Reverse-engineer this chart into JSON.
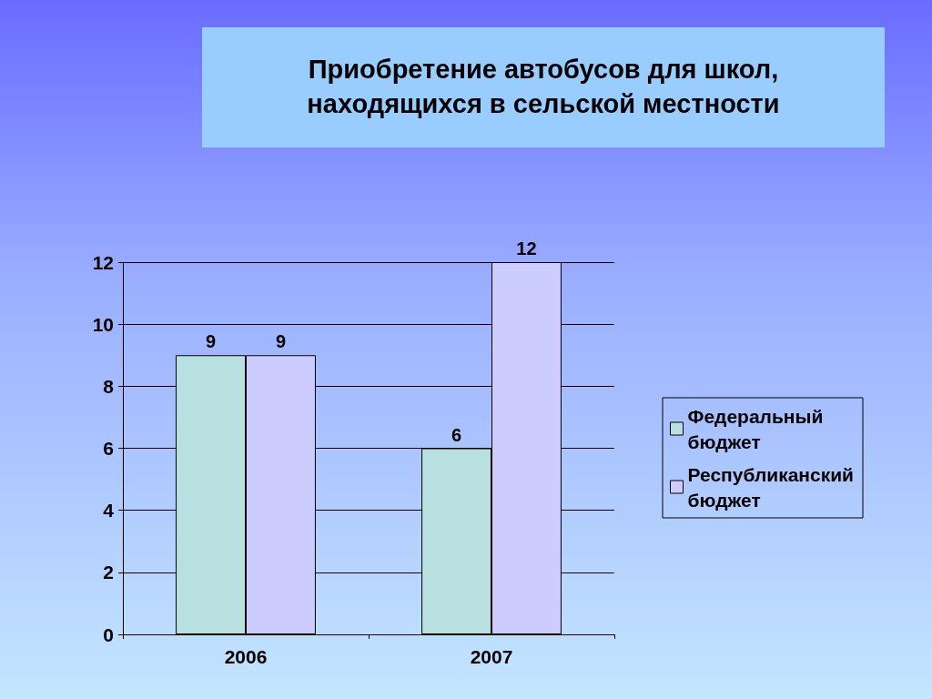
{
  "chart_data": {
    "type": "bar",
    "title": "Приобретение автобусов для школ, находящихся в сельской местности",
    "categories": [
      "2006",
      "2007"
    ],
    "series": [
      {
        "name": "Федеральный бюджет",
        "color": "#b8e0e0",
        "values": [
          9,
          6
        ]
      },
      {
        "name": "Республиканский бюджет",
        "color": "#ccccff",
        "values": [
          9,
          12
        ]
      }
    ],
    "ylim": [
      0,
      12
    ],
    "yticks": [
      0,
      2,
      4,
      6,
      8,
      10,
      12
    ],
    "grid": "y",
    "legend": "right",
    "data_labels": true
  }
}
